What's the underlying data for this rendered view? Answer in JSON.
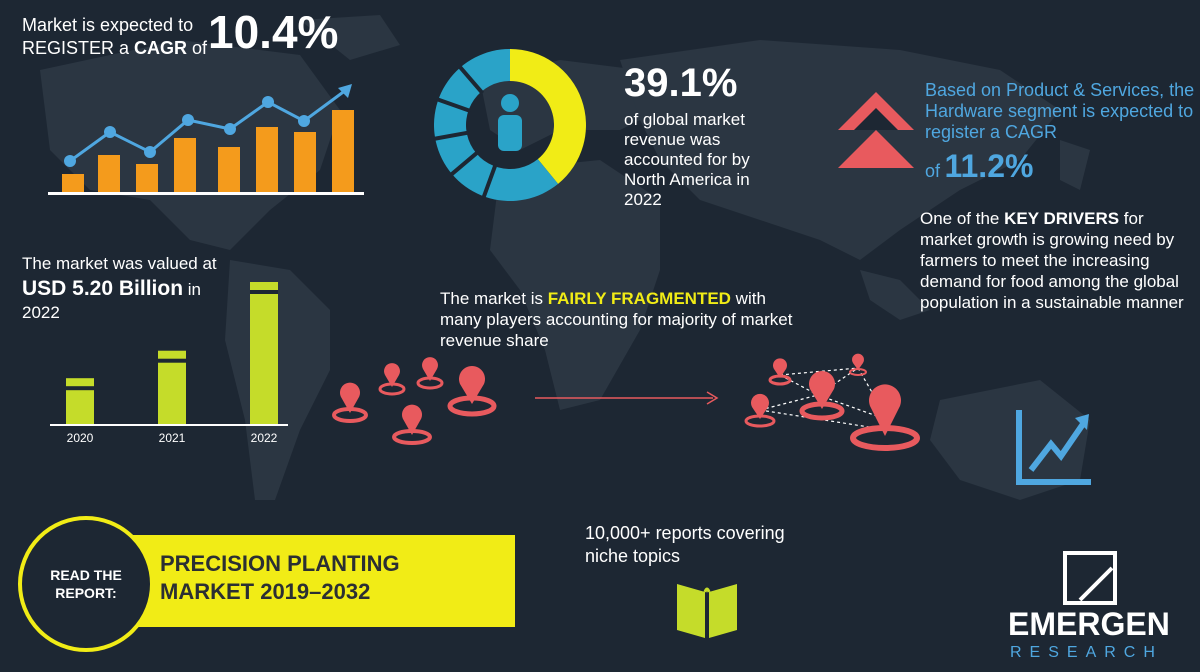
{
  "cagr": {
    "line1": "Market is expected to",
    "line2_prefix": "REGISTER a ",
    "line2_bold": "CAGR",
    "line2_suffix": " of",
    "value": "10.4%"
  },
  "north_america": {
    "share": "39.1%",
    "text": "of global market revenue was accounted for by North America in 2022"
  },
  "hardware": {
    "text": "Based on Product & Services, the Hardware segment is expected to register a CAGR",
    "of": "of",
    "value": "11.2%"
  },
  "key_drivers": {
    "prefix": "One of the ",
    "bold": "KEY DRIVERS",
    "suffix": " for market growth is growing need by farmers to meet the increasing demand for food among the global population in a sustainable manner"
  },
  "valuation": {
    "line1": "The market was valued at",
    "value": "USD 5.20 Billion",
    "suffix": " in",
    "year": "2022"
  },
  "fragmented": {
    "prefix": "The market is ",
    "highlight": "FAIRLY FRAGMENTED",
    "suffix": " with many players accounting for majority of market revenue share"
  },
  "read_report": {
    "circle": "READ THE REPORT:",
    "title_line1": "PRECISION PLANTING",
    "title_line2": "MARKET 2019–2032"
  },
  "reports": {
    "text": "10,000+ reports covering niche topics"
  },
  "logo": {
    "main": "EMERGEN",
    "sub": "RESEARCH"
  },
  "colors": {
    "background": "#1d2733",
    "map": "#2b3642",
    "yellow": "#f1ec16",
    "lime": "#c5dc2a",
    "orange": "#f49b1c",
    "blue": "#4fa7e0",
    "teal": "#2aa3c8",
    "red": "#e85a5e"
  },
  "chart_data": [
    {
      "type": "bar",
      "categories": [
        "2020",
        "2021",
        "2022"
      ],
      "series": [
        {
          "values": [
            1,
            1.6,
            3.1
          ]
        }
      ],
      "xlabel": "",
      "ylabel": ""
    },
    {
      "type": "pie",
      "values": [
        39.1,
        60.9
      ]
    }
  ]
}
